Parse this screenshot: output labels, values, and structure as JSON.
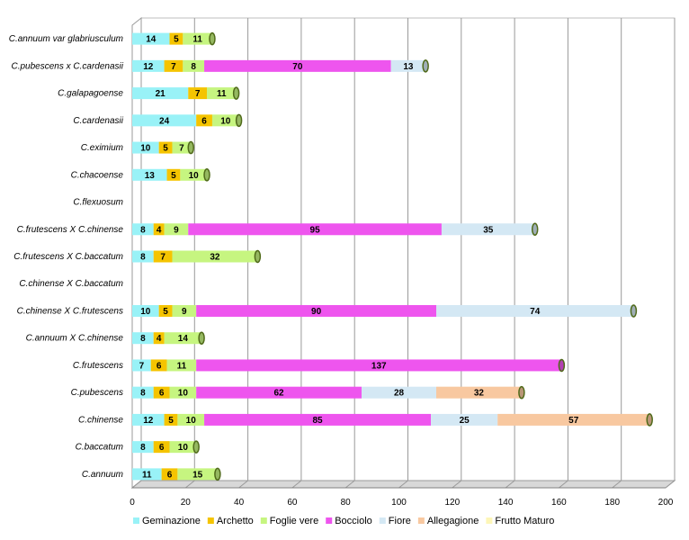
{
  "chart_data": {
    "type": "bar",
    "orientation": "horizontal",
    "stacked": true,
    "three_d": true,
    "title": "",
    "xlabel": "",
    "ylabel": "",
    "xlim": [
      0,
      200
    ],
    "x_ticks": [
      0,
      20,
      40,
      60,
      80,
      100,
      120,
      140,
      160,
      180,
      200
    ],
    "grid": true,
    "legend_position": "bottom",
    "categories": [
      "C.annuum var glabriusculum",
      "C.pubescens x C.cardenasii",
      "C.galapagoense",
      "C.cardenasii",
      "C.eximium",
      "C.chacoense",
      "C.flexuosum",
      "C.frutescens X C.chinense",
      "C.frutescens X C.baccatum",
      "C.chinense X C.baccatum",
      "C.chinense X C.frutescens",
      "C.annuum X C.chinense",
      "C.frutescens",
      "C.pubescens",
      "C.chinense",
      "C.baccatum",
      "C.annuum"
    ],
    "series": [
      {
        "name": "Geminazione",
        "color": "#99f2f7",
        "values": [
          14,
          12,
          21,
          24,
          10,
          13,
          0,
          8,
          8,
          0,
          10,
          8,
          7,
          8,
          12,
          8,
          11
        ]
      },
      {
        "name": "Archetto",
        "color": "#f5c400",
        "values": [
          5,
          7,
          7,
          6,
          5,
          5,
          0,
          4,
          7,
          0,
          5,
          4,
          6,
          6,
          5,
          6,
          6
        ]
      },
      {
        "name": "Foglie vere",
        "color": "#c6f580",
        "values": [
          11,
          8,
          11,
          10,
          7,
          10,
          0,
          9,
          32,
          0,
          9,
          14,
          11,
          10,
          10,
          10,
          15
        ]
      },
      {
        "name": "Bocciolo",
        "color": "#ee55ee",
        "values": [
          0,
          70,
          0,
          0,
          0,
          0,
          0,
          95,
          0,
          0,
          90,
          0,
          137,
          62,
          85,
          0,
          0
        ]
      },
      {
        "name": "Fiore",
        "color": "#d4e8f4",
        "values": [
          0,
          13,
          0,
          0,
          0,
          0,
          0,
          35,
          0,
          0,
          74,
          0,
          0,
          28,
          25,
          0,
          0
        ]
      },
      {
        "name": "Allegagione",
        "color": "#f8c8a0",
        "values": [
          0,
          0,
          0,
          0,
          0,
          0,
          0,
          0,
          0,
          0,
          0,
          0,
          0,
          32,
          57,
          0,
          0
        ]
      },
      {
        "name": "Frutto Maturo",
        "color": "#fdf6b8",
        "values": [
          0,
          0,
          0,
          0,
          0,
          0,
          0,
          0,
          0,
          0,
          0,
          0,
          0,
          0,
          0,
          0,
          0
        ]
      }
    ]
  }
}
